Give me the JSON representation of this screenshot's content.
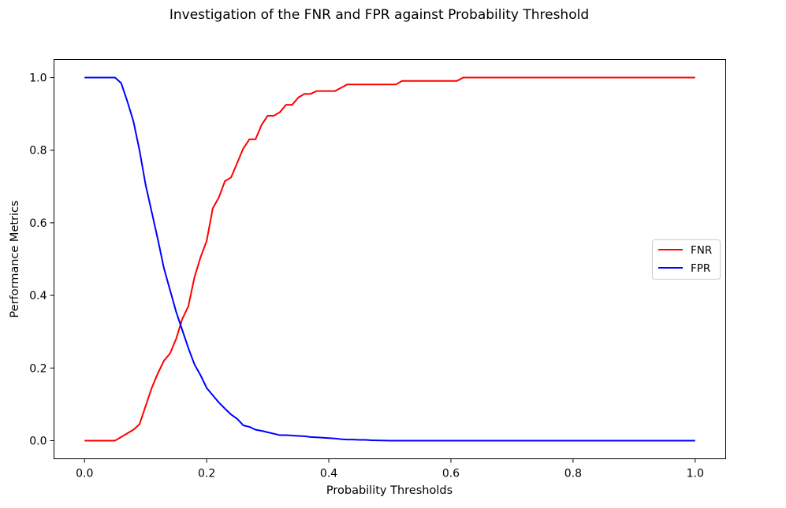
{
  "chart_data": {
    "type": "line",
    "title": "Investigation of the FNR and FPR against Probability Threshold",
    "xlabel": "Probability Thresholds",
    "ylabel": "Performance Metrics",
    "xlim": [
      -0.05,
      1.05
    ],
    "ylim": [
      -0.05,
      1.05
    ],
    "x_ticks": [
      0.0,
      0.2,
      0.4,
      0.6,
      0.8,
      1.0
    ],
    "x_tick_labels": [
      "0.0",
      "0.2",
      "0.4",
      "0.6",
      "0.8",
      "1.0"
    ],
    "y_ticks": [
      0.0,
      0.2,
      0.4,
      0.6,
      0.8,
      1.0
    ],
    "y_tick_labels": [
      "0.0",
      "0.2",
      "0.4",
      "0.6",
      "0.8",
      "1.0"
    ],
    "grid": false,
    "legend_position": "center-right",
    "series": [
      {
        "name": "FNR",
        "color": "#ff0000",
        "x": [
          0.0,
          0.05,
          0.06,
          0.07,
          0.08,
          0.09,
          0.1,
          0.11,
          0.12,
          0.13,
          0.14,
          0.15,
          0.16,
          0.17,
          0.18,
          0.19,
          0.2,
          0.21,
          0.22,
          0.23,
          0.24,
          0.25,
          0.26,
          0.27,
          0.28,
          0.29,
          0.3,
          0.31,
          0.32,
          0.33,
          0.34,
          0.35,
          0.36,
          0.37,
          0.38,
          0.39,
          0.4,
          0.41,
          0.42,
          0.43,
          0.44,
          0.45,
          0.46,
          0.47,
          0.48,
          0.49,
          0.5,
          0.51,
          0.52,
          0.55,
          0.6,
          0.61,
          0.62,
          0.7,
          0.8,
          0.9,
          1.0
        ],
        "y": [
          0.0,
          0.0,
          0.01,
          0.02,
          0.03,
          0.045,
          0.095,
          0.145,
          0.185,
          0.22,
          0.24,
          0.28,
          0.335,
          0.37,
          0.45,
          0.505,
          0.55,
          0.64,
          0.67,
          0.715,
          0.725,
          0.765,
          0.805,
          0.83,
          0.83,
          0.87,
          0.895,
          0.895,
          0.905,
          0.925,
          0.925,
          0.945,
          0.955,
          0.955,
          0.963,
          0.963,
          0.963,
          0.963,
          0.972,
          0.981,
          0.981,
          0.981,
          0.981,
          0.981,
          0.981,
          0.981,
          0.981,
          0.981,
          0.991,
          0.991,
          0.991,
          0.991,
          1.0,
          1.0,
          1.0,
          1.0,
          1.0
        ]
      },
      {
        "name": "FPR",
        "color": "#0000ff",
        "x": [
          0.0,
          0.05,
          0.06,
          0.07,
          0.08,
          0.09,
          0.1,
          0.11,
          0.12,
          0.13,
          0.14,
          0.15,
          0.16,
          0.17,
          0.18,
          0.19,
          0.2,
          0.21,
          0.22,
          0.23,
          0.24,
          0.25,
          0.26,
          0.27,
          0.28,
          0.29,
          0.3,
          0.31,
          0.32,
          0.33,
          0.34,
          0.35,
          0.36,
          0.37,
          0.38,
          0.39,
          0.4,
          0.41,
          0.42,
          0.43,
          0.44,
          0.45,
          0.46,
          0.47,
          0.5,
          0.6,
          0.7,
          0.8,
          0.9,
          1.0
        ],
        "y": [
          1.0,
          1.0,
          0.985,
          0.935,
          0.88,
          0.8,
          0.705,
          0.63,
          0.555,
          0.475,
          0.415,
          0.355,
          0.305,
          0.255,
          0.21,
          0.18,
          0.145,
          0.125,
          0.105,
          0.088,
          0.072,
          0.06,
          0.042,
          0.038,
          0.03,
          0.027,
          0.023,
          0.019,
          0.015,
          0.015,
          0.014,
          0.013,
          0.012,
          0.01,
          0.009,
          0.008,
          0.007,
          0.006,
          0.004,
          0.003,
          0.003,
          0.002,
          0.002,
          0.001,
          0.0,
          0.0,
          0.0,
          0.0,
          0.0,
          0.0
        ]
      }
    ]
  }
}
